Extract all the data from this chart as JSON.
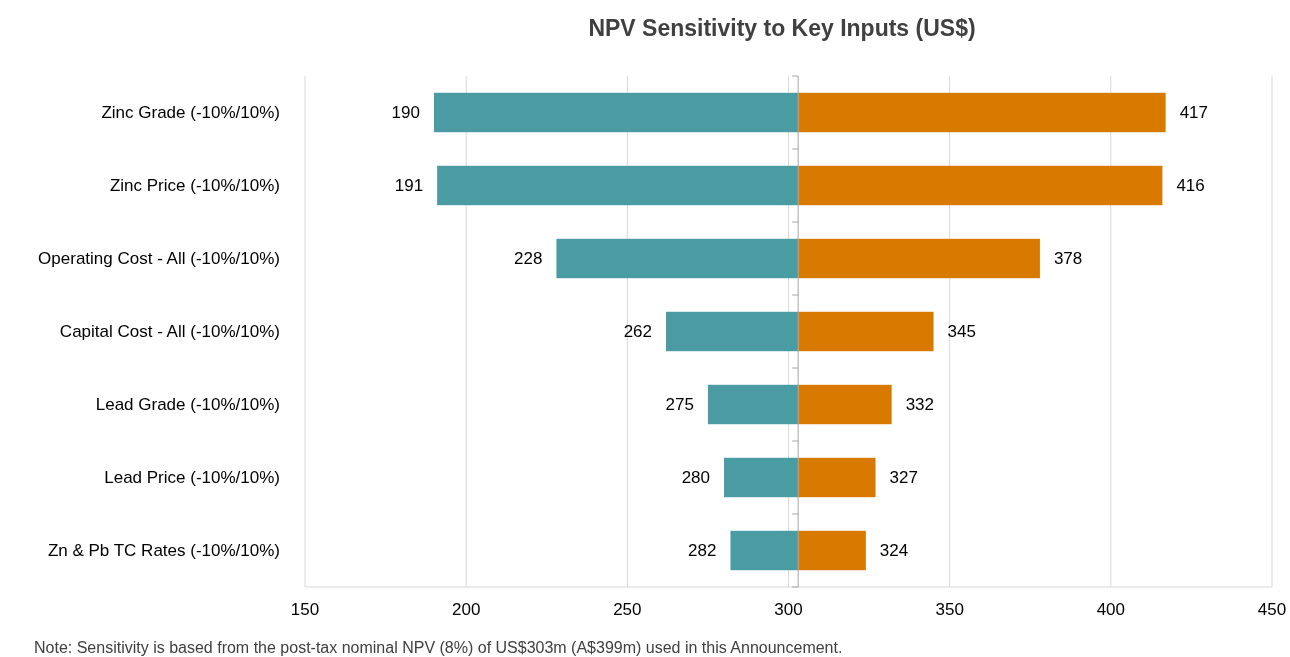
{
  "chart_data": {
    "type": "bar",
    "orientation": "horizontal",
    "title": "NPV Sensitivity to Key Inputs (US$)",
    "categories": [
      "Zinc Grade (-10%/10%)",
      "Zinc Price (-10%/10%)",
      "Operating Cost - All (-10%/10%)",
      "Capital Cost - All (-10%/10%)",
      "Lead Grade (-10%/10%)",
      "Lead Price (-10%/10%)",
      "Zn & Pb TC Rates (-10%/10%)"
    ],
    "series": [
      {
        "color": "#4a9ca2",
        "base": [
          303,
          303,
          303,
          303,
          303,
          303,
          303
        ],
        "values": [
          -113,
          -112,
          -75,
          -41,
          -28,
          -23,
          -21
        ],
        "value_labels": [
          "190",
          "191",
          "228",
          "262",
          "275",
          "280",
          "282"
        ]
      },
      {
        "color": "#d97a00",
        "base": [
          303,
          303,
          303,
          303,
          303,
          303,
          303
        ],
        "values": [
          114,
          113,
          75,
          42,
          29,
          24,
          21
        ],
        "value_labels": [
          "417",
          "416",
          "378",
          "345",
          "332",
          "327",
          "324"
        ]
      }
    ],
    "ref_lines": [
      {
        "axis": "x",
        "value": 303,
        "color": "#a6a6a6"
      }
    ],
    "xlim": [
      150,
      450
    ],
    "xticks": [
      150,
      200,
      250,
      300,
      350,
      400,
      450
    ],
    "grid": "x",
    "annotations": [
      "Note: Sensitivity is based from the post-tax nominal NPV (8%) of US$303m (A$399m) used in this Announcement."
    ]
  }
}
